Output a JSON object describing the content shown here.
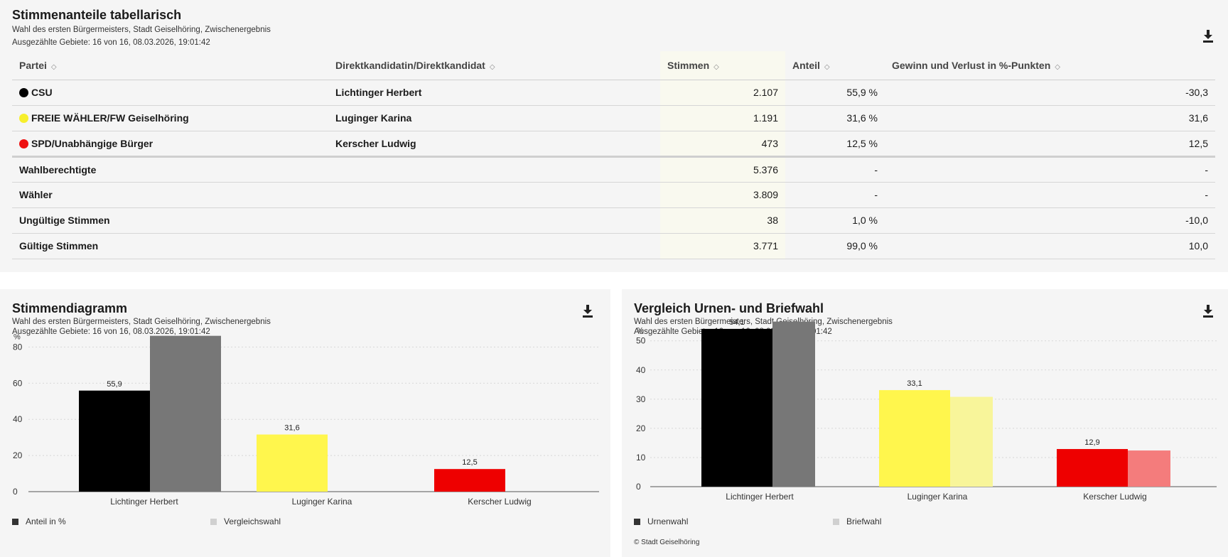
{
  "table": {
    "title": "Stimmenanteile tabellarisch",
    "subtitle": "Wahl des ersten Bürgermeisters, Stadt Geiselhöring, Zwischenergebnis",
    "counted": "Ausgezählte Gebiete: 16 von 16, 08.03.2026, 19:01:42",
    "download_icon": "download-icon",
    "sort_icon": "sort-icon",
    "headers": [
      "Partei",
      "Direktkandidatin/Direktkandidat",
      "Stimmen",
      "Anteil",
      "Gewinn und Verlust in %-Punkten"
    ],
    "rows": [
      {
        "party": "CSU",
        "color": "#000000",
        "candidate": "Lichtinger Herbert",
        "votes": "2.107",
        "share": "55,9 %",
        "change": "-30,3"
      },
      {
        "party": "FREIE WÄHLER/FW Geiselhöring",
        "color": "#f7ef2c",
        "candidate": "Luginger Karina",
        "votes": "1.191",
        "share": "31,6 %",
        "change": "31,6"
      },
      {
        "party": "SPD/Unabhängige Bürger",
        "color": "#ee1111",
        "candidate": "Kerscher Ludwig",
        "votes": "473",
        "share": "12,5 %",
        "change": "12,5"
      }
    ],
    "summary": [
      {
        "label": "Wahlberechtigte",
        "votes": "5.376",
        "share": "-",
        "change": "-"
      },
      {
        "label": "Wähler",
        "votes": "3.809",
        "share": "-",
        "change": "-"
      },
      {
        "label": "Ungültige Stimmen",
        "votes": "38",
        "share": "1,0 %",
        "change": "-10,0"
      },
      {
        "label": "Gültige Stimmen",
        "votes": "3.771",
        "share": "99,0 %",
        "change": "10,0"
      }
    ]
  },
  "chart1": {
    "title": "Stimmendiagramm",
    "subtitle": "Wahl des ersten Bürgermeisters, Stadt Geiselhöring, Zwischenergebnis",
    "counted": "Ausgezählte Gebiete: 16 von 16, 08.03.2026, 19:01:42",
    "download_icon": "download-icon",
    "legend": [
      {
        "label": "Anteil in %",
        "color": "#333333"
      },
      {
        "label": "Vergleichswahl",
        "color": "#d0d0d0"
      }
    ]
  },
  "chart2": {
    "title": "Vergleich Urnen- und Briefwahl",
    "subtitle": "Wahl des ersten Bürgermeisters, Stadt Geiselhöring, Zwischenergebnis",
    "counted": "Ausgezählte Gebiete: 16 von 16, 08.03.2026, 19:01:42",
    "download_icon": "download-icon",
    "legend": [
      {
        "label": "Urnenwahl",
        "color": "#333333"
      },
      {
        "label": "Briefwahl",
        "color": "#d0d0d0"
      }
    ],
    "copyright": "© Stadt Geiselhöring"
  },
  "chart_data": [
    {
      "type": "bar",
      "ylabel": "%",
      "ylim": [
        0,
        90
      ],
      "yticks": [
        0,
        20,
        40,
        60,
        80
      ],
      "grid": true,
      "legend_position": "bottom",
      "categories": [
        "Lichtinger Herbert",
        "Luginger Karina",
        "Kerscher Ludwig"
      ],
      "series": [
        {
          "name": "Anteil in %",
          "values": [
            55.9,
            31.6,
            12.5
          ],
          "labels": [
            "55,9",
            "31,6",
            "12,5"
          ],
          "colors": [
            "#000000",
            "#fff64d",
            "#ee0000"
          ]
        },
        {
          "name": "Vergleichswahl",
          "values": [
            86.2,
            null,
            null
          ],
          "colors": [
            "#777777",
            "#f8f59a",
            "#f47c7c"
          ]
        }
      ]
    },
    {
      "type": "bar",
      "ylabel": "%",
      "ylim": [
        0,
        57
      ],
      "yticks": [
        0,
        10,
        20,
        30,
        40,
        50
      ],
      "grid": true,
      "legend_position": "bottom",
      "categories": [
        "Lichtinger Herbert",
        "Luginger Karina",
        "Kerscher Ludwig"
      ],
      "series": [
        {
          "name": "Urnenwahl",
          "values": [
            54.1,
            33.1,
            12.9
          ],
          "labels": [
            "54,1",
            "33,1",
            "12,9"
          ],
          "colors": [
            "#000000",
            "#fff64d",
            "#ee0000"
          ]
        },
        {
          "name": "Briefwahl",
          "values": [
            56.6,
            30.8,
            12.4
          ],
          "colors": [
            "#777777",
            "#f8f59a",
            "#f47c7c"
          ]
        }
      ]
    }
  ]
}
